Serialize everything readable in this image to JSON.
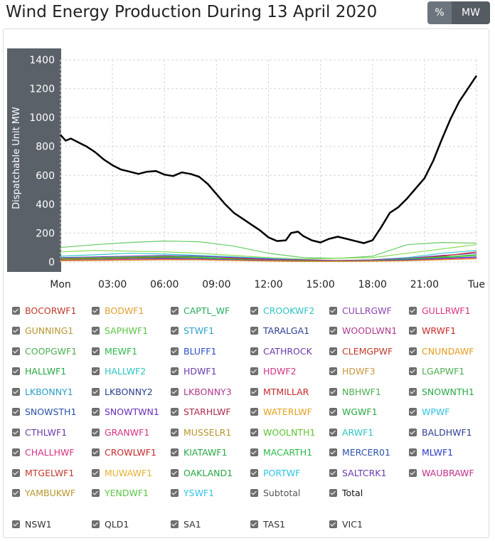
{
  "header": {
    "title": "Wind Energy Production During 13 April 2020",
    "toggle_pct": "%",
    "toggle_mw": "MW"
  },
  "chart_data": {
    "type": "line",
    "title": "Wind Energy Production During 13 April 2020",
    "ylabel": "Dispatchable Unit MW",
    "xlabel": "",
    "ylim": [
      0,
      1400
    ],
    "yticks": [
      0,
      200,
      400,
      600,
      800,
      1000,
      1200,
      1400
    ],
    "xlim": [
      0,
      24
    ],
    "xticks": [
      {
        "x": 0,
        "label": "Mon"
      },
      {
        "x": 3,
        "label": "03:00"
      },
      {
        "x": 6,
        "label": "06:00"
      },
      {
        "x": 9,
        "label": "09:00"
      },
      {
        "x": 12,
        "label": "12:00"
      },
      {
        "x": 15,
        "label": "15:00"
      },
      {
        "x": 18,
        "label": "18:00"
      },
      {
        "x": 21,
        "label": "21:00"
      },
      {
        "x": 24,
        "label": "Tue"
      }
    ],
    "grid": true,
    "legend_position": "bottom",
    "series": [
      {
        "name": "Total",
        "color": "#000000",
        "x": [
          0,
          0.3,
          0.6,
          1,
          1.5,
          2,
          2.5,
          3,
          3.5,
          4,
          4.5,
          5,
          5.5,
          6,
          6.5,
          7,
          7.5,
          8,
          8.5,
          9,
          9.5,
          10,
          10.5,
          11,
          11.5,
          12,
          12.5,
          13,
          13.3,
          13.7,
          14,
          14.5,
          15,
          15.5,
          16,
          16.5,
          17,
          17.5,
          18,
          18.5,
          19,
          19.5,
          20,
          20.5,
          21,
          21.5,
          22,
          22.5,
          23,
          23.5,
          24
        ],
        "y": [
          880,
          840,
          855,
          830,
          800,
          760,
          710,
          670,
          640,
          625,
          610,
          625,
          630,
          605,
          595,
          620,
          610,
          590,
          540,
          470,
          400,
          340,
          300,
          260,
          220,
          170,
          145,
          150,
          200,
          210,
          180,
          150,
          135,
          160,
          175,
          160,
          145,
          130,
          150,
          240,
          340,
          380,
          440,
          510,
          580,
          700,
          850,
          990,
          1110,
          1200,
          1290
        ]
      },
      {
        "name": "COOPGWF1",
        "color": "#66cc66",
        "x": [
          0,
          2,
          4,
          6,
          8,
          10,
          12,
          14,
          16,
          18,
          20,
          22,
          24
        ],
        "y": [
          100,
          120,
          135,
          145,
          140,
          110,
          60,
          30,
          25,
          40,
          120,
          135,
          130
        ]
      },
      {
        "name": "SAPHWF1",
        "color": "#88dd55",
        "x": [
          0,
          2,
          4,
          6,
          8,
          10,
          12,
          14,
          16,
          18,
          20,
          22,
          24
        ],
        "y": [
          70,
          80,
          75,
          70,
          60,
          45,
          30,
          20,
          25,
          30,
          60,
          90,
          120
        ]
      },
      {
        "name": "HALLWF2",
        "color": "#33cccc",
        "x": [
          0,
          2,
          4,
          6,
          8,
          10,
          12,
          14,
          16,
          18,
          20,
          22,
          24
        ],
        "y": [
          40,
          50,
          60,
          55,
          45,
          35,
          25,
          15,
          10,
          15,
          30,
          60,
          80
        ]
      },
      {
        "name": "SNOWTWN1",
        "color": "#8833cc",
        "x": [
          0,
          2,
          4,
          6,
          8,
          10,
          12,
          14,
          16,
          18,
          20,
          22,
          24
        ],
        "y": [
          30,
          35,
          40,
          45,
          40,
          30,
          20,
          15,
          10,
          15,
          25,
          45,
          60
        ]
      },
      {
        "name": "CROWLWF1",
        "color": "#cc2222",
        "x": [
          0,
          2,
          4,
          6,
          8,
          10,
          12,
          14,
          16,
          18,
          20,
          22,
          24
        ],
        "y": [
          20,
          25,
          30,
          35,
          30,
          25,
          15,
          10,
          8,
          12,
          20,
          40,
          70
        ]
      },
      {
        "name": "MEWF1",
        "color": "#33cc55",
        "x": [
          0,
          2,
          4,
          6,
          8,
          10,
          12,
          14,
          16,
          18,
          20,
          22,
          24
        ],
        "y": [
          25,
          30,
          35,
          40,
          35,
          20,
          10,
          5,
          5,
          10,
          20,
          35,
          50
        ]
      },
      {
        "name": "WOOLNTH1",
        "color": "#55cc22",
        "x": [
          0,
          2,
          4,
          6,
          8,
          10,
          12,
          14,
          16,
          18,
          20,
          22,
          24
        ],
        "y": [
          15,
          20,
          25,
          30,
          28,
          20,
          12,
          8,
          6,
          10,
          18,
          30,
          45
        ]
      },
      {
        "name": "MLWF1",
        "color": "#3344cc",
        "x": [
          0,
          2,
          4,
          6,
          8,
          10,
          12,
          14,
          16,
          18,
          20,
          22,
          24
        ],
        "y": [
          10,
          15,
          20,
          25,
          22,
          15,
          10,
          5,
          5,
          8,
          15,
          25,
          35
        ]
      },
      {
        "name": "GULLRWF1",
        "color": "#dd3399",
        "x": [
          0,
          2,
          4,
          6,
          8,
          10,
          12,
          14,
          16,
          18,
          20,
          22,
          24
        ],
        "y": [
          12,
          14,
          18,
          20,
          18,
          12,
          8,
          4,
          4,
          6,
          10,
          20,
          28
        ]
      },
      {
        "name": "CNUNDAWF",
        "color": "#dd9922",
        "x": [
          0,
          2,
          4,
          6,
          8,
          10,
          12,
          14,
          16,
          18,
          20,
          22,
          24
        ],
        "y": [
          8,
          10,
          12,
          15,
          14,
          10,
          6,
          3,
          3,
          5,
          8,
          15,
          22
        ]
      }
    ]
  },
  "legend": {
    "rows": [
      [
        {
          "label": "BOCORWF1",
          "color": "#c0392b"
        },
        {
          "label": "BODWF1",
          "color": "#e0a030"
        },
        {
          "label": "CAPTL_WF",
          "color": "#27ae60"
        },
        {
          "label": "CROOKWF2",
          "color": "#2ec4c4"
        },
        {
          "label": "CULLRGWF",
          "color": "#8e44ad"
        },
        {
          "label": "GULLRWF1",
          "color": "#d63384"
        }
      ],
      [
        {
          "label": "GUNNING1",
          "color": "#b8962e"
        },
        {
          "label": "SAPHWF1",
          "color": "#5cc545"
        },
        {
          "label": "STWF1",
          "color": "#2ea0c8"
        },
        {
          "label": "TARALGA1",
          "color": "#2c3e90"
        },
        {
          "label": "WOODLWN1",
          "color": "#b03a8e"
        },
        {
          "label": "WRWF1",
          "color": "#c62828"
        }
      ],
      [
        {
          "label": "COOPGWF1",
          "color": "#4caf50"
        },
        {
          "label": "MEWF1",
          "color": "#2eb84a"
        },
        {
          "label": "BLUFF1",
          "color": "#2a50c8"
        },
        {
          "label": "CATHROCK",
          "color": "#6a3aa8"
        },
        {
          "label": "CLEMGPWF",
          "color": "#c0392b"
        },
        {
          "label": "CNUNDAWF",
          "color": "#e59a1c"
        }
      ],
      [
        {
          "label": "HALLWF1",
          "color": "#27a844"
        },
        {
          "label": "HALLWF2",
          "color": "#2ec4c4"
        },
        {
          "label": "HDWF1",
          "color": "#6a3aa8"
        },
        {
          "label": "HDWF2",
          "color": "#d63384"
        },
        {
          "label": "HDWF3",
          "color": "#c8963c"
        },
        {
          "label": "LGAPWF1",
          "color": "#4caf50"
        }
      ],
      [
        {
          "label": "LKBONNY1",
          "color": "#2a9ec8"
        },
        {
          "label": "LKBONNY2",
          "color": "#2c3e90"
        },
        {
          "label": "LKBONNY3",
          "color": "#b03a8e"
        },
        {
          "label": "MTMILLAR",
          "color": "#c62828"
        },
        {
          "label": "NBHWF1",
          "color": "#4caf50"
        },
        {
          "label": "SNOWNTH1",
          "color": "#27a844"
        }
      ],
      [
        {
          "label": "SNOWSTH1",
          "color": "#2a50a8"
        },
        {
          "label": "SNOWTWN1",
          "color": "#6a2ab8"
        },
        {
          "label": "STARHLWF",
          "color": "#b02a4a"
        },
        {
          "label": "WATERLWF",
          "color": "#e5a01c"
        },
        {
          "label": "WGWF1",
          "color": "#27a844"
        },
        {
          "label": "WPWF",
          "color": "#2ec4e4"
        }
      ],
      [
        {
          "label": "CTHLWF1",
          "color": "#6a3aa8"
        },
        {
          "label": "GRANWF1",
          "color": "#d63384"
        },
        {
          "label": "MUSSELR1",
          "color": "#b8962e"
        },
        {
          "label": "WOOLNTH1",
          "color": "#5cc530"
        },
        {
          "label": "ARWF1",
          "color": "#2ec4c4"
        },
        {
          "label": "BALDHWF1",
          "color": "#2c3e90"
        }
      ],
      [
        {
          "label": "CHALLHWF",
          "color": "#d63384"
        },
        {
          "label": "CROWLWF1",
          "color": "#c62828"
        },
        {
          "label": "KIATAWF1",
          "color": "#27a844"
        },
        {
          "label": "MACARTH1",
          "color": "#2eb84a"
        },
        {
          "label": "MERCER01",
          "color": "#2a50a8"
        },
        {
          "label": "MLWF1",
          "color": "#2a3ac8"
        }
      ],
      [
        {
          "label": "MTGELWF1",
          "color": "#c0392b"
        },
        {
          "label": "MUWAWF1",
          "color": "#e5b030"
        },
        {
          "label": "OAKLAND1",
          "color": "#27a844"
        },
        {
          "label": "PORTWF",
          "color": "#2ec4e4"
        },
        {
          "label": "SALTCRK1",
          "color": "#6a3aa8"
        },
        {
          "label": "WAUBRAWF",
          "color": "#c0308e"
        }
      ],
      [
        {
          "label": "YAMBUKWF",
          "color": "#b8962e"
        },
        {
          "label": "YENDWF1",
          "color": "#5cc545"
        },
        {
          "label": "YSWF1",
          "color": "#2ec4e4"
        },
        {
          "label": "Subtotal",
          "color": "#555555"
        },
        {
          "label": "Total",
          "color": "#111111"
        }
      ]
    ],
    "regions": [
      {
        "label": "NSW1",
        "color": "#333333"
      },
      {
        "label": "QLD1",
        "color": "#333333"
      },
      {
        "label": "SA1",
        "color": "#333333"
      },
      {
        "label": "TAS1",
        "color": "#333333"
      },
      {
        "label": "VIC1",
        "color": "#333333"
      }
    ]
  }
}
